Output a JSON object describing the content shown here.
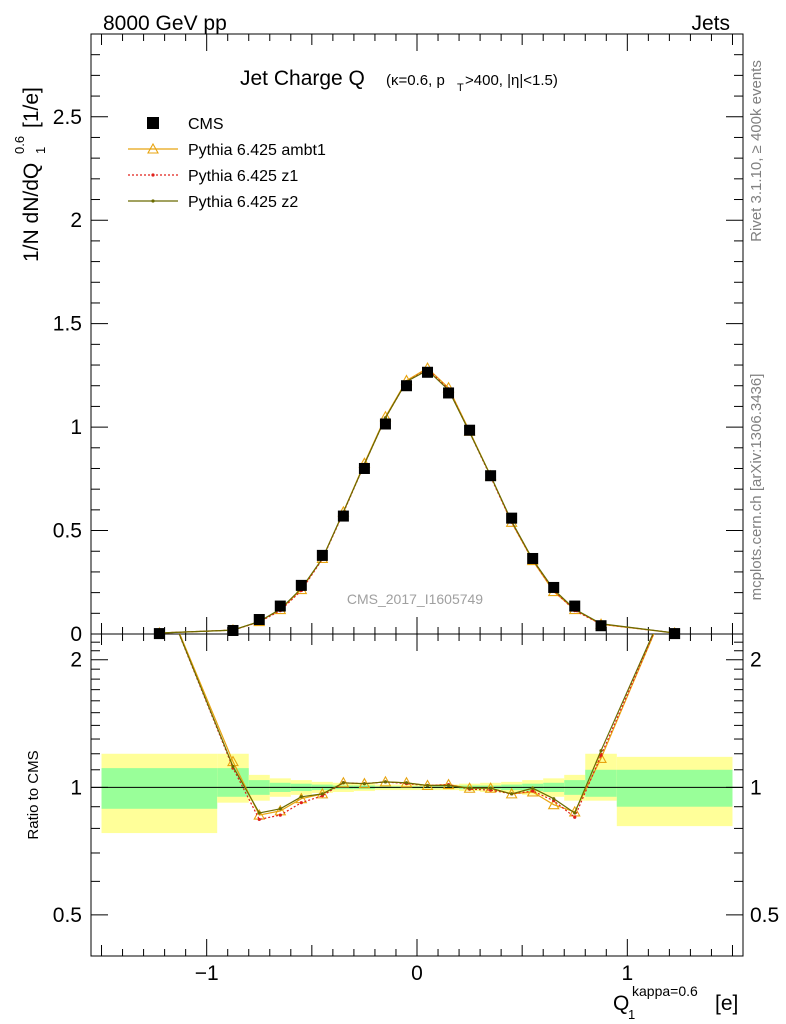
{
  "header": {
    "left": "8000 GeV pp",
    "right": "Jets"
  },
  "side_labels": {
    "rivet": "Rivet 3.1.10, ≥ 400k events",
    "mcplots": "mcplots.cern.ch [arXiv:1306.3436]"
  },
  "chart_data": {
    "type": "scatter",
    "title": "Jet Charge Q",
    "title_detail": "(κ=0.6, p",
    "title_sub": "T",
    "title_tail": ">400, |η|<1.5)",
    "ylabel": "1/N dN/dQ",
    "ylabel_sub": "1",
    "ylabel_sup": "0.6",
    "ylabel_unit": "[1/e]",
    "xlabel": "Q",
    "xlabel_sub": "1",
    "xlabel_sup": "kappa=0.6",
    "xlabel_unit": "[e]",
    "ratio_ylabel": "Ratio to CMS",
    "watermark": "CMS_2017_I1605749",
    "xlim": [
      -1.55,
      1.55
    ],
    "ylim": [
      0,
      2.9
    ],
    "ratio_ylim": [
      0.4,
      2.3
    ],
    "x_ticks": [
      -1,
      0,
      1
    ],
    "x_tick_labels": [
      "−1",
      "0",
      "1"
    ],
    "y_ticks": [
      0.5,
      1,
      1.5,
      2,
      2.5
    ],
    "y_tick_labels": [
      "0.5",
      "1",
      "1.5",
      "2",
      "2.5"
    ],
    "y_zero_label": "0",
    "ratio_ticks": [
      0.5,
      1,
      2
    ],
    "ratio_tick_labels": [
      "0.5",
      "1",
      "2"
    ],
    "x": [
      -1.225,
      -0.875,
      -0.75,
      -0.65,
      -0.55,
      -0.45,
      -0.35,
      -0.25,
      -0.15,
      -0.05,
      0.05,
      0.15,
      0.25,
      0.35,
      0.45,
      0.55,
      0.65,
      0.75,
      0.875,
      1.225
    ],
    "bands": {
      "edges": [
        -1.5,
        -0.95,
        -0.8,
        -0.7,
        -0.6,
        -0.5,
        -0.4,
        -0.3,
        -0.2,
        -0.1,
        0,
        0.1,
        0.2,
        0.3,
        0.4,
        0.5,
        0.6,
        0.7,
        0.8,
        0.95,
        1.5
      ],
      "stat_lo": [
        0.89,
        0.95,
        0.96,
        0.975,
        0.98,
        0.985,
        0.99,
        0.99,
        0.995,
        0.995,
        0.995,
        0.995,
        0.99,
        0.99,
        0.985,
        0.98,
        0.975,
        0.96,
        0.95,
        0.9
      ],
      "stat_hi": [
        1.11,
        1.11,
        1.04,
        1.025,
        1.02,
        1.015,
        1.01,
        1.01,
        1.005,
        1.005,
        1.005,
        1.005,
        1.01,
        1.01,
        1.015,
        1.02,
        1.025,
        1.04,
        1.1,
        1.1
      ],
      "tot_lo": [
        0.78,
        0.92,
        0.93,
        0.95,
        0.96,
        0.97,
        0.975,
        0.98,
        0.985,
        0.985,
        0.985,
        0.985,
        0.98,
        0.975,
        0.97,
        0.96,
        0.95,
        0.93,
        0.93,
        0.81
      ],
      "tot_hi": [
        1.2,
        1.2,
        1.07,
        1.05,
        1.04,
        1.03,
        1.025,
        1.02,
        1.015,
        1.015,
        1.015,
        1.015,
        1.02,
        1.025,
        1.03,
        1.04,
        1.05,
        1.07,
        1.2,
        1.18
      ]
    },
    "series": [
      {
        "name": "CMS",
        "color": "#000000",
        "marker": "square",
        "values": [
          0.002,
          0.017,
          0.07,
          0.135,
          0.235,
          0.38,
          0.57,
          0.8,
          1.015,
          1.2,
          1.265,
          1.165,
          0.985,
          0.765,
          0.56,
          0.365,
          0.225,
          0.135,
          0.04,
          0.002
        ]
      },
      {
        "name": "Pythia 6.425 ambt1",
        "color": "#e8a410",
        "marker": "triangle",
        "dash": "",
        "values": [
          0.005,
          0.019,
          0.06,
          0.118,
          0.215,
          0.365,
          0.59,
          0.825,
          1.05,
          1.225,
          1.285,
          1.19,
          0.98,
          0.765,
          0.54,
          0.355,
          0.205,
          0.118,
          0.047,
          0.005
        ],
        "ratio": [
          3.0,
          1.15,
          0.86,
          0.88,
          0.94,
          0.965,
          1.025,
          1.02,
          1.03,
          1.025,
          1.01,
          1.015,
          0.995,
          0.995,
          0.965,
          0.975,
          0.91,
          0.875,
          1.17,
          3.0
        ]
      },
      {
        "name": "Pythia 6.425 z1",
        "color": "#e0201a",
        "marker": "dot",
        "dash": "2,2",
        "values": [
          0.005,
          0.019,
          0.058,
          0.113,
          0.21,
          0.362,
          0.586,
          0.82,
          1.045,
          1.22,
          1.28,
          1.185,
          0.975,
          0.76,
          0.54,
          0.357,
          0.21,
          0.113,
          0.048,
          0.005
        ],
        "ratio": [
          3.0,
          1.11,
          0.84,
          0.86,
          0.92,
          0.955,
          1.025,
          1.02,
          1.03,
          1.02,
          1.01,
          1.015,
          0.99,
          0.985,
          0.965,
          0.98,
          0.93,
          0.85,
          1.19,
          3.0
        ]
      },
      {
        "name": "Pythia 6.425 z2",
        "color": "#6b6b00",
        "marker": "dot",
        "dash": "",
        "values": [
          0.005,
          0.019,
          0.061,
          0.12,
          0.22,
          0.365,
          0.59,
          0.82,
          1.045,
          1.22,
          1.275,
          1.18,
          0.975,
          0.765,
          0.545,
          0.36,
          0.215,
          0.12,
          0.05,
          0.005
        ],
        "ratio": [
          3.0,
          1.12,
          0.87,
          0.89,
          0.95,
          0.965,
          1.025,
          1.02,
          1.03,
          1.025,
          1.01,
          1.01,
          0.995,
          0.995,
          0.965,
          0.995,
          0.94,
          0.87,
          1.22,
          3.0
        ]
      }
    ]
  }
}
